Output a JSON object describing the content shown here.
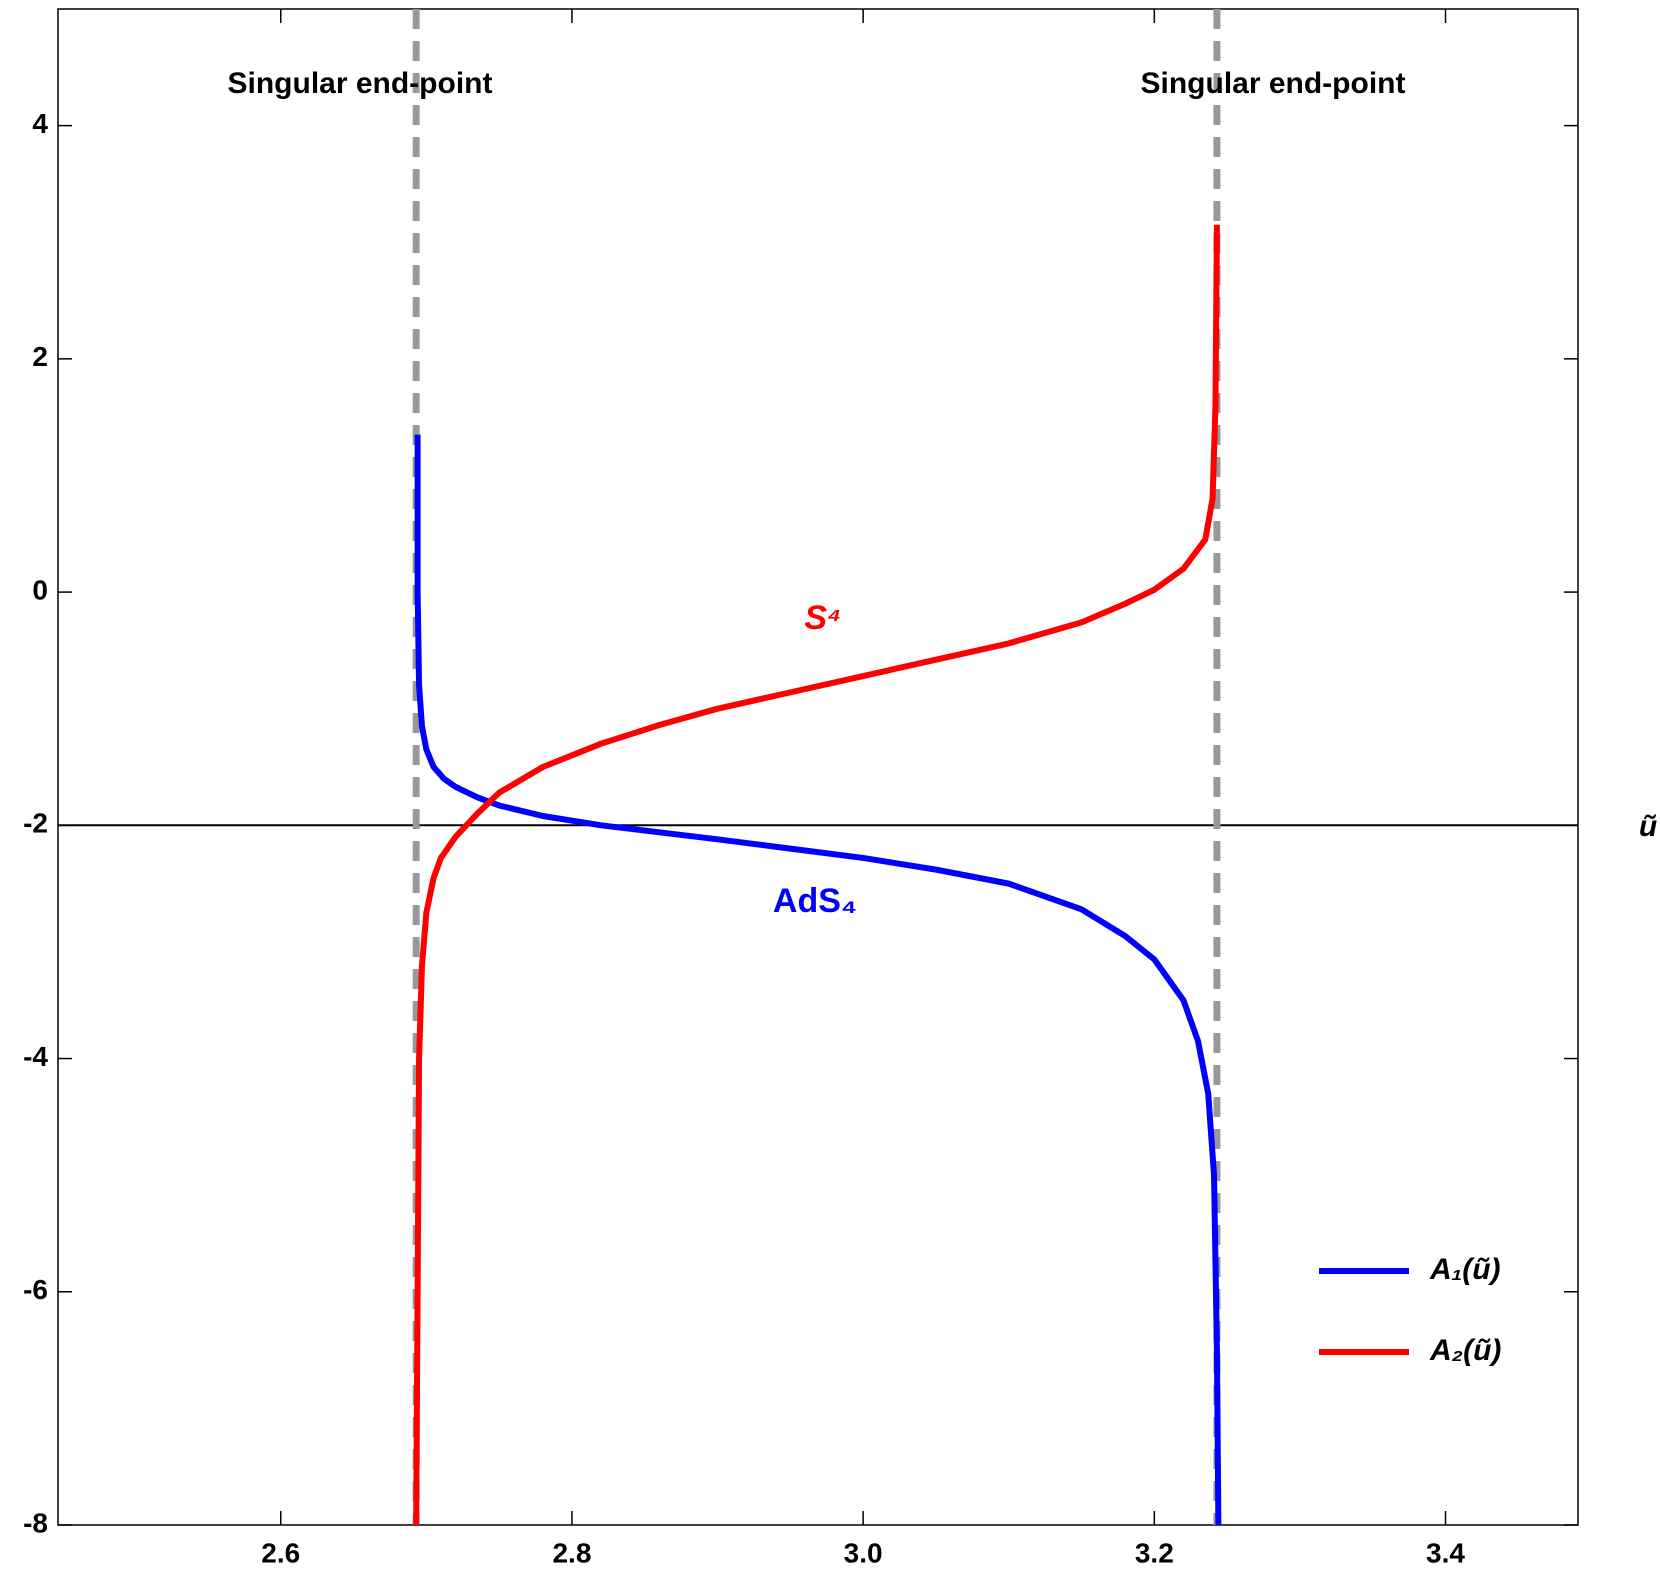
{
  "chart_data": {
    "type": "line",
    "x_label": "ũ",
    "xlim": [
      2.447,
      3.491
    ],
    "ylim": [
      -8,
      5
    ],
    "xticks": [
      2.6,
      2.8,
      {
        "value": 3.0,
        "label": "3.0"
      },
      3.2,
      3.4
    ],
    "yticks": [
      -8,
      -6,
      -4,
      -2,
      0,
      2,
      4
    ],
    "x_axis_at": -2,
    "vlines": [
      2.693,
      3.243
    ],
    "vline_color": "#999999",
    "annotations": [
      {
        "text": "Singular end-point"
      },
      {
        "text": "Singular end-point"
      },
      {
        "text": "S⁴",
        "color": "#ff0000"
      },
      {
        "text": "AdS₄",
        "color": "#0000ff"
      }
    ],
    "legend": "lower right",
    "series": [
      {
        "name": "A₁(ũ)",
        "color": "#0000ff",
        "x": [
          2.694,
          2.694,
          2.695,
          2.697,
          2.7,
          2.705,
          2.712,
          2.72,
          2.735,
          2.75,
          2.78,
          2.82,
          2.86,
          2.9,
          2.95,
          3.0,
          3.05,
          3.1,
          3.15,
          3.18,
          3.2,
          3.22,
          3.23,
          3.237,
          3.241,
          3.243,
          3.244
        ],
        "values": [
          1.35,
          0,
          -0.8,
          -1.15,
          -1.35,
          -1.5,
          -1.6,
          -1.67,
          -1.76,
          -1.83,
          -1.92,
          -2.0,
          -2.06,
          -2.12,
          -2.2,
          -2.28,
          -2.38,
          -2.5,
          -2.72,
          -2.95,
          -3.15,
          -3.5,
          -3.85,
          -4.3,
          -5.0,
          -6.5,
          -8
        ]
      },
      {
        "name": "A₂(ũ)",
        "color": "#ff0000",
        "x": [
          2.693,
          2.694,
          2.695,
          2.697,
          2.7,
          2.705,
          2.71,
          2.72,
          2.735,
          2.75,
          2.78,
          2.82,
          2.86,
          2.9,
          2.95,
          3.0,
          3.05,
          3.1,
          3.15,
          3.18,
          3.2,
          3.22,
          3.235,
          3.24,
          3.242,
          3.243
        ],
        "values": [
          -8,
          -6,
          -4,
          -3.2,
          -2.75,
          -2.45,
          -2.28,
          -2.1,
          -1.9,
          -1.72,
          -1.5,
          -1.3,
          -1.14,
          -1.0,
          -0.86,
          -0.72,
          -0.58,
          -0.44,
          -0.26,
          -0.1,
          0.02,
          0.2,
          0.45,
          0.8,
          1.6,
          3.15
        ]
      }
    ]
  }
}
